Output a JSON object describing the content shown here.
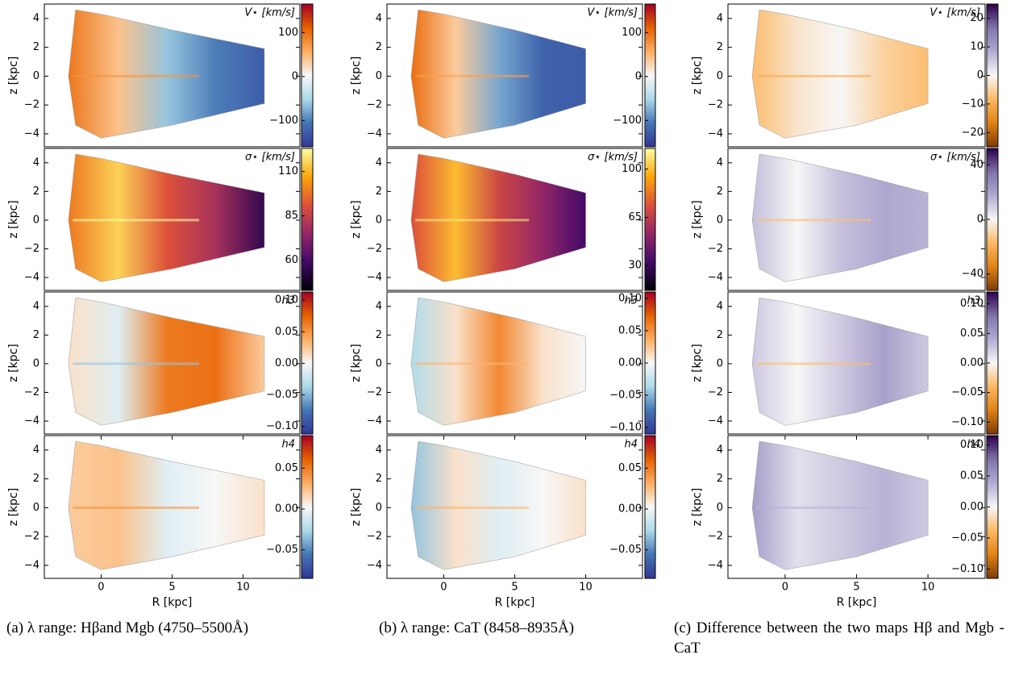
{
  "chart_data": [
    {
      "type": "map",
      "label": "V⋆ [km/s]",
      "ylabel": "z [kpc]",
      "xlim": [
        -4,
        14
      ],
      "ylim": [
        -4.9,
        5
      ],
      "yticks": [
        {
          "value": -4,
          "label": "−4"
        },
        {
          "value": -2,
          "label": "−2"
        },
        0,
        2,
        4
      ],
      "colorbar": {
        "lim": [
          -160,
          165
        ],
        "ticks": [
          {
            "value": -100,
            "label": "−100"
          },
          0,
          100
        ],
        "colors": [
          "#313695",
          "#4575b4",
          "#abd9e9",
          "#f7f7f7",
          "#fdae61",
          "#e66101",
          "#a50026"
        ]
      }
    },
    {
      "type": "map",
      "label": "V⋆ [km/s]",
      "ylabel": "z [kpc]",
      "xlim": [
        -4,
        14
      ],
      "ylim": [
        -4.9,
        5
      ],
      "yticks": [
        {
          "value": -4,
          "label": "−4"
        },
        {
          "value": -2,
          "label": "−2"
        },
        0,
        2,
        4
      ],
      "colorbar": {
        "lim": [
          -160,
          165
        ],
        "ticks": [
          {
            "value": -100,
            "label": "−100"
          },
          0,
          100
        ],
        "colors": [
          "#313695",
          "#4575b4",
          "#abd9e9",
          "#f7f7f7",
          "#fdae61",
          "#e66101",
          "#a50026"
        ]
      }
    },
    {
      "type": "map",
      "label": "V⋆ [km/s]",
      "ylabel": "z [kpc]",
      "xlim": [
        -4,
        14
      ],
      "ylim": [
        -4.9,
        5
      ],
      "yticks": [
        {
          "value": -4,
          "label": "−4"
        },
        {
          "value": -2,
          "label": "−2"
        },
        0,
        2,
        4
      ],
      "colorbar": {
        "lim": [
          -25,
          25
        ],
        "ticks": [
          {
            "value": -20,
            "label": "−20"
          },
          {
            "value": -10,
            "label": "−10"
          },
          0,
          10,
          20
        ],
        "colors": [
          "#7f3b08",
          "#e08214",
          "#fdb863",
          "#f7f7f7",
          "#b2abd2",
          "#8073ac",
          "#2d004b"
        ]
      }
    },
    {
      "type": "map",
      "label": "σ⋆ [km/s]",
      "ylabel": "z [kpc]",
      "xlim": [
        -4,
        14
      ],
      "ylim": [
        -4.9,
        5
      ],
      "yticks": [
        {
          "value": -4,
          "label": "−4"
        },
        {
          "value": -2,
          "label": "−2"
        },
        0,
        2,
        4
      ],
      "colorbar": {
        "lim": [
          43,
          123
        ],
        "ticks": [
          60,
          85,
          110
        ],
        "colors": [
          "#000004",
          "#420a68",
          "#932667",
          "#dd513a",
          "#fca50a",
          "#fcffa4"
        ]
      }
    },
    {
      "type": "map",
      "label": "σ⋆ [km/s]",
      "ylabel": "z [kpc]",
      "xlim": [
        -4,
        14
      ],
      "ylim": [
        -4.9,
        5
      ],
      "yticks": [
        {
          "value": -4,
          "label": "−4"
        },
        {
          "value": -2,
          "label": "−2"
        },
        0,
        2,
        4
      ],
      "colorbar": {
        "lim": [
          12,
          115
        ],
        "ticks": [
          30,
          65,
          100
        ],
        "colors": [
          "#000004",
          "#420a68",
          "#932667",
          "#dd513a",
          "#fca50a",
          "#fcffa4"
        ]
      }
    },
    {
      "type": "map",
      "label": "σ⋆ [km/s]",
      "ylabel": "z [kpc]",
      "xlim": [
        -4,
        14
      ],
      "ylim": [
        -4.9,
        5
      ],
      "yticks": [
        {
          "value": -4,
          "label": "−4"
        },
        {
          "value": -2,
          "label": "−2"
        },
        0,
        2,
        4
      ],
      "colorbar": {
        "lim": [
          -52,
          52
        ],
        "ticks": [
          {
            "value": -40,
            "label": "−40"
          },
          0,
          40
        ],
        "colors": [
          "#7f3b08",
          "#e08214",
          "#fdb863",
          "#f7f7f7",
          "#b2abd2",
          "#8073ac",
          "#2d004b"
        ]
      }
    },
    {
      "type": "map",
      "label": "h3",
      "ylabel": "z [kpc]",
      "xlim": [
        -4,
        14
      ],
      "ylim": [
        -4.9,
        5
      ],
      "yticks": [
        {
          "value": -4,
          "label": "−4"
        },
        {
          "value": -2,
          "label": "−2"
        },
        0,
        2,
        4
      ],
      "colorbar": {
        "lim": [
          -0.112,
          0.113
        ],
        "ticks": [
          {
            "value": -0.1,
            "label": "−0.10"
          },
          {
            "value": -0.05,
            "label": "−0.05"
          },
          {
            "value": 0,
            "label": "0.00"
          },
          0.05,
          {
            "value": 0.1,
            "label": "0.10"
          }
        ],
        "colors": [
          "#313695",
          "#4575b4",
          "#abd9e9",
          "#f7f7f7",
          "#fdae61",
          "#e66101",
          "#a50026"
        ]
      }
    },
    {
      "type": "map",
      "label": "h3",
      "ylabel": "z [kpc]",
      "xlim": [
        -4,
        14
      ],
      "ylim": [
        -4.9,
        5
      ],
      "yticks": [
        {
          "value": -4,
          "label": "−4"
        },
        {
          "value": -2,
          "label": "−2"
        },
        0,
        2,
        4
      ],
      "colorbar": {
        "lim": [
          -0.11,
          0.11
        ],
        "ticks": [
          {
            "value": -0.1,
            "label": "−0.10"
          },
          {
            "value": -0.05,
            "label": "−0.05"
          },
          {
            "value": 0,
            "label": "0.00"
          },
          0.05,
          {
            "value": 0.1,
            "label": "0.10"
          }
        ],
        "colors": [
          "#313695",
          "#4575b4",
          "#abd9e9",
          "#f7f7f7",
          "#fdae61",
          "#e66101",
          "#a50026"
        ]
      }
    },
    {
      "type": "map",
      "label": "h3",
      "ylabel": "z [kpc]",
      "xlim": [
        -4,
        14
      ],
      "ylim": [
        -4.9,
        5
      ],
      "yticks": [
        {
          "value": -4,
          "label": "−4"
        },
        {
          "value": -2,
          "label": "−2"
        },
        0,
        2,
        4
      ],
      "colorbar": {
        "lim": [
          -0.12,
          0.12
        ],
        "ticks": [
          {
            "value": -0.1,
            "label": "−0.10"
          },
          {
            "value": -0.05,
            "label": "−0.05"
          },
          {
            "value": 0,
            "label": "0.00"
          },
          0.05,
          {
            "value": 0.1,
            "label": "0.10"
          }
        ],
        "colors": [
          "#7f3b08",
          "#e08214",
          "#fdb863",
          "#f7f7f7",
          "#b2abd2",
          "#8073ac",
          "#2d004b"
        ]
      }
    },
    {
      "type": "map",
      "label": "h4",
      "ylabel": "z [kpc]",
      "xlabel": "R [kpc]",
      "xlim": [
        -4,
        14
      ],
      "ylim": [
        -4.9,
        5
      ],
      "xticks": [
        0,
        5,
        10
      ],
      "yticks": [
        {
          "value": -4,
          "label": "−4"
        },
        {
          "value": -2,
          "label": "−2"
        },
        0,
        2,
        4
      ],
      "colorbar": {
        "lim": [
          -0.085,
          0.09
        ],
        "ticks": [
          {
            "value": -0.05,
            "label": "−0.05"
          },
          {
            "value": 0,
            "label": "0.00"
          },
          0.05
        ],
        "colors": [
          "#313695",
          "#4575b4",
          "#abd9e9",
          "#f7f7f7",
          "#fdae61",
          "#e66101",
          "#a50026"
        ]
      }
    },
    {
      "type": "map",
      "label": "h4",
      "ylabel": "z [kpc]",
      "xlabel": "R [kpc]",
      "xlim": [
        -4,
        14
      ],
      "ylim": [
        -4.9,
        5
      ],
      "xticks": [
        0,
        5,
        10
      ],
      "yticks": [
        {
          "value": -4,
          "label": "−4"
        },
        {
          "value": -2,
          "label": "−2"
        },
        0,
        2,
        4
      ],
      "colorbar": {
        "lim": [
          -0.085,
          0.09
        ],
        "ticks": [
          {
            "value": -0.05,
            "label": "−0.05"
          },
          {
            "value": 0,
            "label": "0.00"
          },
          0.05
        ],
        "colors": [
          "#313695",
          "#4575b4",
          "#abd9e9",
          "#f7f7f7",
          "#fdae61",
          "#e66101",
          "#a50026"
        ]
      }
    },
    {
      "type": "map",
      "label": "h4",
      "ylabel": "z [kpc]",
      "xlabel": "R [kpc]",
      "xlim": [
        -4,
        14
      ],
      "ylim": [
        -4.9,
        5
      ],
      "xticks": [
        0,
        5,
        10
      ],
      "yticks": [
        {
          "value": -4,
          "label": "−4"
        },
        {
          "value": -2,
          "label": "−2"
        },
        0,
        2,
        4
      ],
      "colorbar": {
        "lim": [
          -0.115,
          0.115
        ],
        "ticks": [
          {
            "value": -0.1,
            "label": "−0.10"
          },
          {
            "value": -0.05,
            "label": "−0.05"
          },
          {
            "value": 0,
            "label": "0.00"
          },
          0.05,
          {
            "value": 0.1,
            "label": "0.10"
          }
        ],
        "colors": [
          "#7f3b08",
          "#e08214",
          "#fdb863",
          "#f7f7f7",
          "#b2abd2",
          "#8073ac",
          "#2d004b"
        ]
      }
    }
  ],
  "captions": [
    "(a) λ range: Hβand Mgb (4750–5500Å)",
    "(b) λ range: CaT (8458–8935Å)",
    "(c) Difference between the two maps Hβ and Mgb - CaT"
  ]
}
